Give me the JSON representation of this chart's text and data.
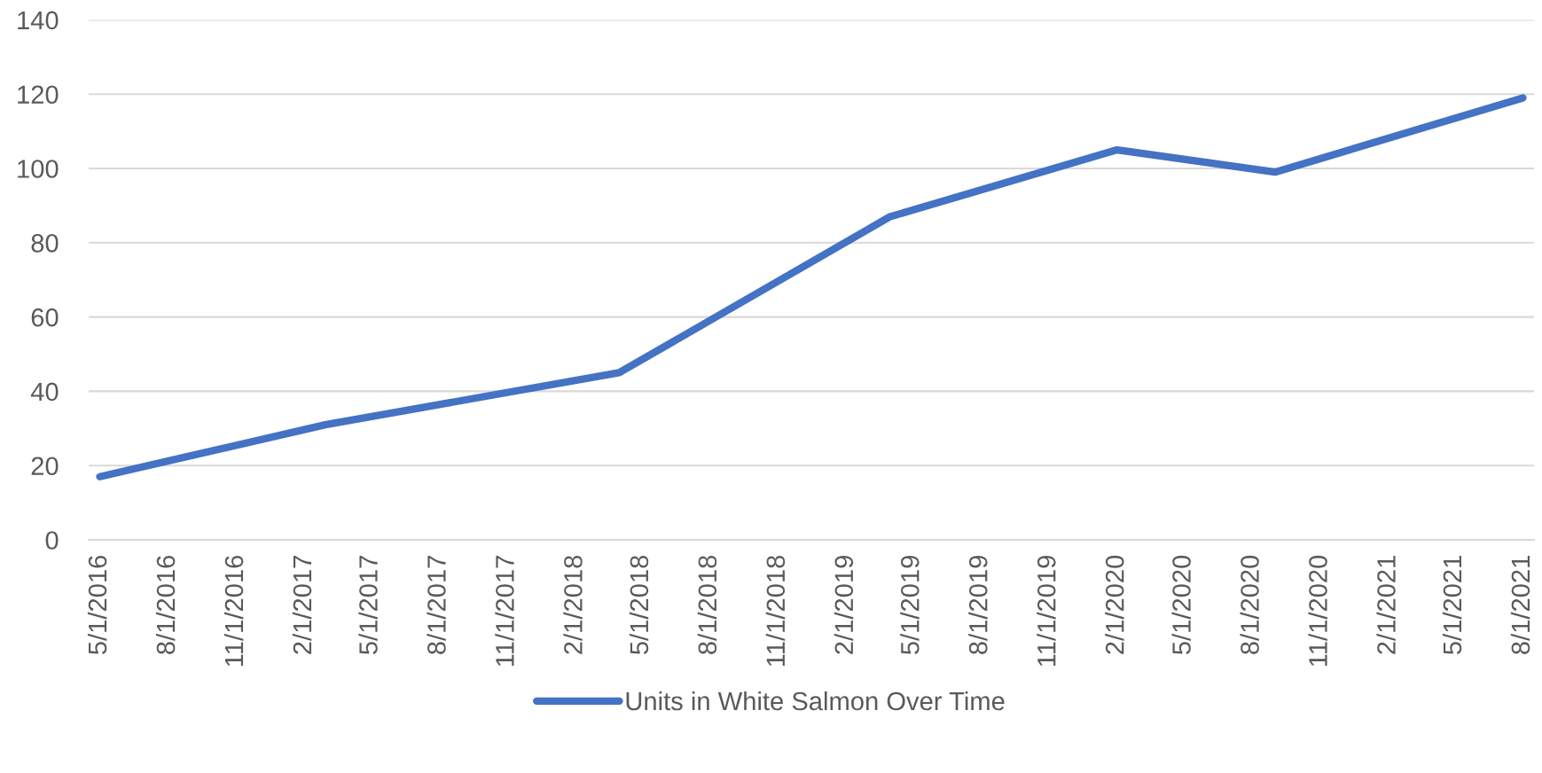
{
  "chart_data": {
    "type": "line",
    "x": [
      "2016-05-01",
      "2017-03-01",
      "2018-04-01",
      "2019-04-01",
      "2020-02-01",
      "2020-09-01",
      "2021-08-01"
    ],
    "series": [
      {
        "name": "Units in White Salmon Over Time",
        "color": "#4472c4",
        "values": [
          17,
          31,
          45,
          87,
          105,
          99,
          119
        ]
      }
    ],
    "xlim": [
      "2016-04-16",
      "2021-08-16"
    ],
    "xticks": [
      {
        "value": "2016-05-01",
        "label": "5/1/2016"
      },
      {
        "value": "2016-08-01",
        "label": "8/1/2016"
      },
      {
        "value": "2016-11-01",
        "label": "11/1/2016"
      },
      {
        "value": "2017-02-01",
        "label": "2/1/2017"
      },
      {
        "value": "2017-05-01",
        "label": "5/1/2017"
      },
      {
        "value": "2017-08-01",
        "label": "8/1/2017"
      },
      {
        "value": "2017-11-01",
        "label": "11/1/2017"
      },
      {
        "value": "2018-02-01",
        "label": "2/1/2018"
      },
      {
        "value": "2018-05-01",
        "label": "5/1/2018"
      },
      {
        "value": "2018-08-01",
        "label": "8/1/2018"
      },
      {
        "value": "2018-11-01",
        "label": "11/1/2018"
      },
      {
        "value": "2019-02-01",
        "label": "2/1/2019"
      },
      {
        "value": "2019-05-01",
        "label": "5/1/2019"
      },
      {
        "value": "2019-08-01",
        "label": "8/1/2019"
      },
      {
        "value": "2019-11-01",
        "label": "11/1/2019"
      },
      {
        "value": "2020-02-01",
        "label": "2/1/2020"
      },
      {
        "value": "2020-05-01",
        "label": "5/1/2020"
      },
      {
        "value": "2020-08-01",
        "label": "8/1/2020"
      },
      {
        "value": "2020-11-01",
        "label": "11/1/2020"
      },
      {
        "value": "2021-02-01",
        "label": "2/1/2021"
      },
      {
        "value": "2021-05-01",
        "label": "5/1/2021"
      },
      {
        "value": "2021-08-01",
        "label": "8/1/2021"
      }
    ],
    "ylim": [
      0,
      140
    ],
    "yticks": [
      0,
      20,
      40,
      60,
      80,
      100,
      120,
      140
    ],
    "grid": "y",
    "legend": "bottom",
    "line_style": "solid"
  }
}
